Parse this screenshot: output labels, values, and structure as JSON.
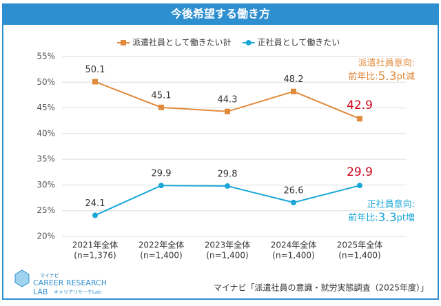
{
  "chart_data": {
    "type": "line",
    "title": "今後希望する働き方",
    "categories": [
      "2021年全体",
      "2022年全体",
      "2023年全体",
      "2024年全体",
      "2025年全体"
    ],
    "category_notes": [
      "(n=1,376)",
      "(n=1,400)",
      "(n=1,400)",
      "(n=1,400)",
      "(n=1,400)"
    ],
    "series": [
      {
        "name": "派遣社員として働きたい計",
        "color": "#e08a3c",
        "marker": "square",
        "values": [
          50.1,
          45.1,
          44.3,
          48.2,
          42.9
        ]
      },
      {
        "name": "正社員として働きたい",
        "color": "#1aa7d8",
        "marker": "circle",
        "values": [
          24.1,
          29.9,
          29.8,
          26.6,
          29.9
        ]
      }
    ],
    "ylim": [
      20,
      55
    ],
    "yticks": [
      {
        "value": 20,
        "label": "20%"
      },
      {
        "value": 25,
        "label": "25%"
      },
      {
        "value": 30,
        "label": "30%"
      },
      {
        "value": 35,
        "label": "35%"
      },
      {
        "value": 40,
        "label": "40%"
      },
      {
        "value": 45,
        "label": "45%"
      },
      {
        "value": 50,
        "label": "50%"
      },
      {
        "value": 55,
        "label": "55%"
      }
    ],
    "grid": true,
    "highlight_last_color": "#d0021b",
    "annotations": [
      {
        "title": "派遣社員意向:",
        "prefix": "前年比:",
        "value": "5.3",
        "suffix": "pt減",
        "color": "#e08a3c"
      },
      {
        "title": "正社員意向:",
        "prefix": "前年比:",
        "value": "3.3",
        "suffix": "pt増",
        "color": "#1aa7d8"
      }
    ],
    "source": "マイナビ「派遣社員の意識・就労実態調査（2025年度）」"
  },
  "logo": {
    "brand": "マイナビ",
    "line1": "CAREER RESEARCH",
    "line2": "LAB",
    "sub": "キャリアリサーチLab"
  }
}
